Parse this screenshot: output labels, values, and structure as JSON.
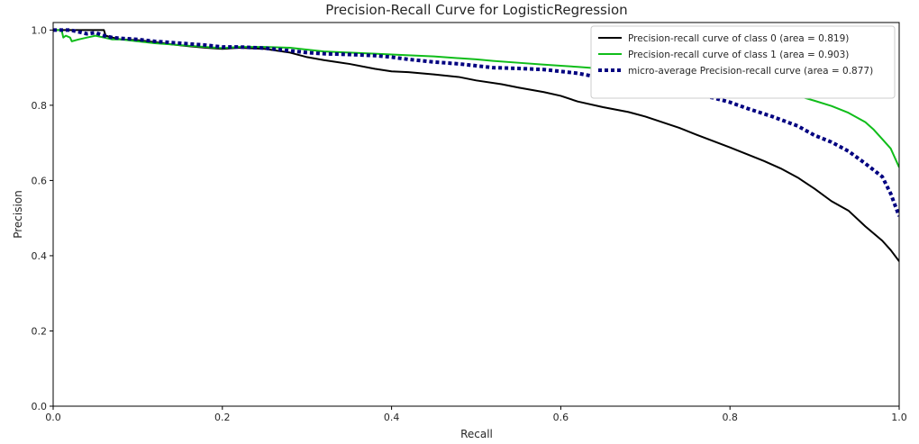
{
  "chart_data": {
    "type": "line",
    "title": "Precision-Recall Curve for LogisticRegression",
    "xlabel": "Recall",
    "ylabel": "Precision",
    "xlim": [
      0.0,
      1.0
    ],
    "ylim": [
      0.0,
      1.02
    ],
    "xticks": [
      "0.0",
      "0.2",
      "0.4",
      "0.6",
      "0.8",
      "1.0"
    ],
    "yticks": [
      "0.0",
      "0.2",
      "0.4",
      "0.6",
      "0.8",
      "1.0"
    ],
    "grid": false,
    "legend_position": "top-right",
    "series": [
      {
        "name": "Precision-recall curve of class 0 (area = 0.819)",
        "color": "#000000",
        "style": "solid",
        "x": [
          0.0,
          0.01,
          0.02,
          0.03,
          0.04,
          0.05,
          0.06,
          0.062,
          0.07,
          0.08,
          0.1,
          0.12,
          0.14,
          0.16,
          0.18,
          0.2,
          0.22,
          0.25,
          0.28,
          0.3,
          0.32,
          0.35,
          0.38,
          0.4,
          0.42,
          0.45,
          0.48,
          0.5,
          0.53,
          0.55,
          0.58,
          0.6,
          0.62,
          0.65,
          0.68,
          0.7,
          0.72,
          0.74,
          0.76,
          0.78,
          0.8,
          0.82,
          0.84,
          0.86,
          0.88,
          0.9,
          0.92,
          0.94,
          0.96,
          0.98,
          0.99,
          1.0
        ],
        "y": [
          1.0,
          1.0,
          1.0,
          1.0,
          1.0,
          1.0,
          1.0,
          0.985,
          0.98,
          0.975,
          0.973,
          0.968,
          0.962,
          0.957,
          0.953,
          0.95,
          0.953,
          0.95,
          0.94,
          0.928,
          0.92,
          0.91,
          0.897,
          0.89,
          0.888,
          0.882,
          0.875,
          0.866,
          0.856,
          0.847,
          0.835,
          0.825,
          0.81,
          0.795,
          0.782,
          0.77,
          0.755,
          0.74,
          0.722,
          0.705,
          0.688,
          0.67,
          0.652,
          0.632,
          0.608,
          0.578,
          0.545,
          0.52,
          0.478,
          0.44,
          0.415,
          0.385
        ]
      },
      {
        "name": "Precision-recall curve of class 1 (area = 0.903)",
        "color": "#10bd1a",
        "style": "solid",
        "x": [
          0.0,
          0.01,
          0.012,
          0.015,
          0.02,
          0.022,
          0.03,
          0.04,
          0.05,
          0.06,
          0.07,
          0.08,
          0.1,
          0.12,
          0.15,
          0.18,
          0.2,
          0.22,
          0.25,
          0.28,
          0.3,
          0.32,
          0.35,
          0.38,
          0.4,
          0.42,
          0.45,
          0.48,
          0.5,
          0.52,
          0.55,
          0.58,
          0.6,
          0.62,
          0.65,
          0.68,
          0.7,
          0.72,
          0.75,
          0.78,
          0.8,
          0.82,
          0.85,
          0.88,
          0.9,
          0.92,
          0.94,
          0.96,
          0.97,
          0.98,
          0.99,
          1.0
        ],
        "y": [
          1.0,
          1.0,
          0.98,
          0.985,
          0.98,
          0.97,
          0.975,
          0.98,
          0.985,
          0.98,
          0.975,
          0.975,
          0.97,
          0.965,
          0.96,
          0.955,
          0.952,
          0.955,
          0.955,
          0.953,
          0.948,
          0.943,
          0.94,
          0.937,
          0.935,
          0.933,
          0.93,
          0.925,
          0.922,
          0.918,
          0.913,
          0.908,
          0.905,
          0.902,
          0.897,
          0.892,
          0.888,
          0.882,
          0.872,
          0.862,
          0.855,
          0.848,
          0.838,
          0.825,
          0.812,
          0.798,
          0.78,
          0.755,
          0.735,
          0.71,
          0.685,
          0.635
        ]
      },
      {
        "name": "micro-average Precision-recall curve (area = 0.877)",
        "color": "#000080",
        "style": "dotted",
        "x": [
          0.0,
          0.02,
          0.04,
          0.05,
          0.06,
          0.07,
          0.08,
          0.1,
          0.12,
          0.15,
          0.18,
          0.2,
          0.22,
          0.25,
          0.28,
          0.3,
          0.32,
          0.35,
          0.38,
          0.4,
          0.42,
          0.45,
          0.48,
          0.5,
          0.52,
          0.55,
          0.58,
          0.6,
          0.62,
          0.65,
          0.68,
          0.7,
          0.72,
          0.75,
          0.78,
          0.8,
          0.82,
          0.85,
          0.88,
          0.9,
          0.92,
          0.94,
          0.96,
          0.98,
          0.99,
          1.0
        ],
        "y": [
          1.0,
          1.0,
          0.99,
          0.993,
          0.985,
          0.98,
          0.978,
          0.975,
          0.97,
          0.965,
          0.96,
          0.955,
          0.955,
          0.952,
          0.945,
          0.94,
          0.937,
          0.935,
          0.932,
          0.928,
          0.922,
          0.915,
          0.91,
          0.905,
          0.9,
          0.898,
          0.895,
          0.89,
          0.885,
          0.872,
          0.86,
          0.848,
          0.84,
          0.832,
          0.82,
          0.808,
          0.792,
          0.77,
          0.745,
          0.72,
          0.702,
          0.678,
          0.645,
          0.61,
          0.565,
          0.505
        ]
      }
    ]
  }
}
